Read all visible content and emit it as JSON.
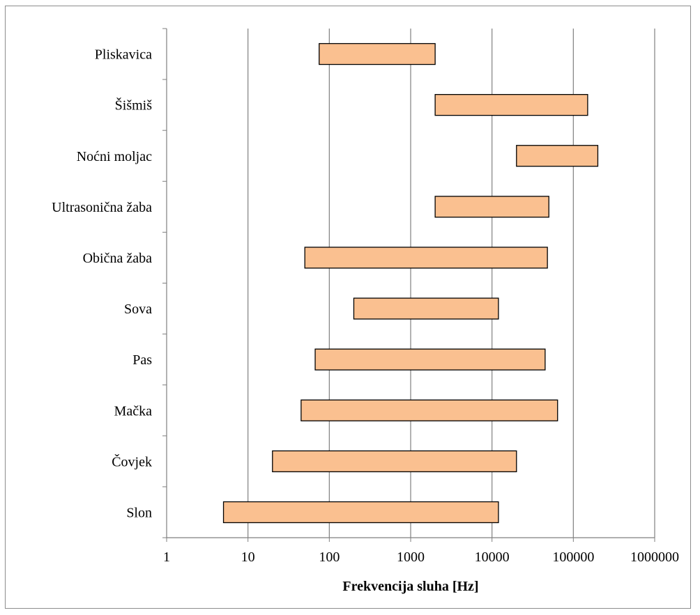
{
  "chart_data": {
    "type": "bar",
    "orientation": "horizontal",
    "bar_style": "floating-range",
    "x_scale": "log",
    "xlim": [
      1,
      1000000
    ],
    "x_ticks": [
      1,
      10,
      100,
      1000,
      10000,
      100000,
      1000000
    ],
    "x_tick_labels": [
      "1",
      "10",
      "100",
      "1000",
      "10000",
      "100000",
      "1000000"
    ],
    "xlabel": "Frekvencija sluha [Hz]",
    "ylabel": "",
    "title": "",
    "grid": "vertical-major",
    "legend": "none",
    "bar_color": "#fac090",
    "bar_edge_color": "#000000",
    "grid_color": "#7f7f7f",
    "categories": [
      "Pliskavica",
      "Šišmiš",
      "Noćni moljac",
      "Ultrasonična žaba",
      "Obična žaba",
      "Sova",
      "Pas",
      "Mačka",
      "Čovjek",
      "Slon"
    ],
    "ranges": [
      {
        "category": "Pliskavica",
        "low": 75,
        "high": 2000
      },
      {
        "category": "Šišmiš",
        "low": 2000,
        "high": 150000
      },
      {
        "category": "Noćni moljac",
        "low": 20000,
        "high": 200000
      },
      {
        "category": "Ultrasonična žaba",
        "low": 2000,
        "high": 50000
      },
      {
        "category": "Obična žaba",
        "low": 50,
        "high": 48000
      },
      {
        "category": "Sova",
        "low": 200,
        "high": 12000
      },
      {
        "category": "Pas",
        "low": 67,
        "high": 45000
      },
      {
        "category": "Mačka",
        "low": 45,
        "high": 64000
      },
      {
        "category": "Čovjek",
        "low": 20,
        "high": 20000
      },
      {
        "category": "Slon",
        "low": 5,
        "high": 12000
      }
    ]
  }
}
